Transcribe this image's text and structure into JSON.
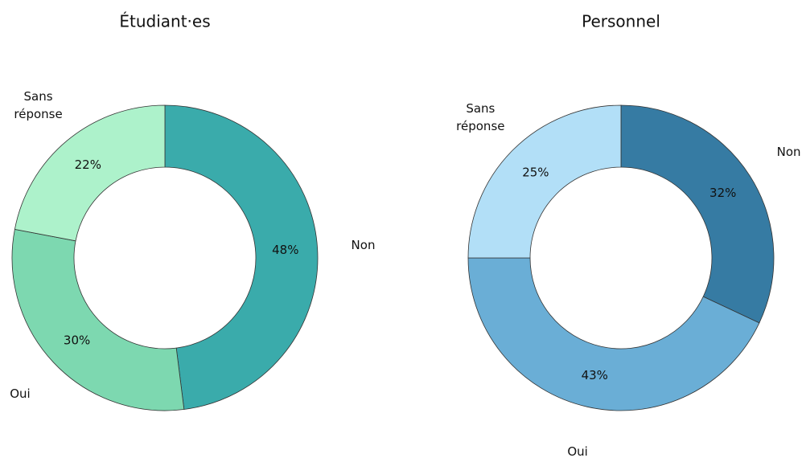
{
  "chart_data": [
    {
      "type": "donut",
      "title": "Étudiant·es",
      "categories": [
        "Non",
        "Oui",
        "Sans réponse"
      ],
      "values": [
        48,
        30,
        22
      ],
      "value_labels": [
        "48%",
        "30%",
        "22%"
      ],
      "colors": [
        "#3aabab",
        "#7dd8b0",
        "#adf2cb"
      ]
    },
    {
      "type": "donut",
      "title": "Personnel",
      "categories": [
        "Non",
        "Oui",
        "Sans réponse"
      ],
      "values": [
        32,
        43,
        25
      ],
      "value_labels": [
        "32%",
        "43%",
        "25%"
      ],
      "colors": [
        "#367ba3",
        "#6aaed6",
        "#b2dff7"
      ]
    }
  ]
}
